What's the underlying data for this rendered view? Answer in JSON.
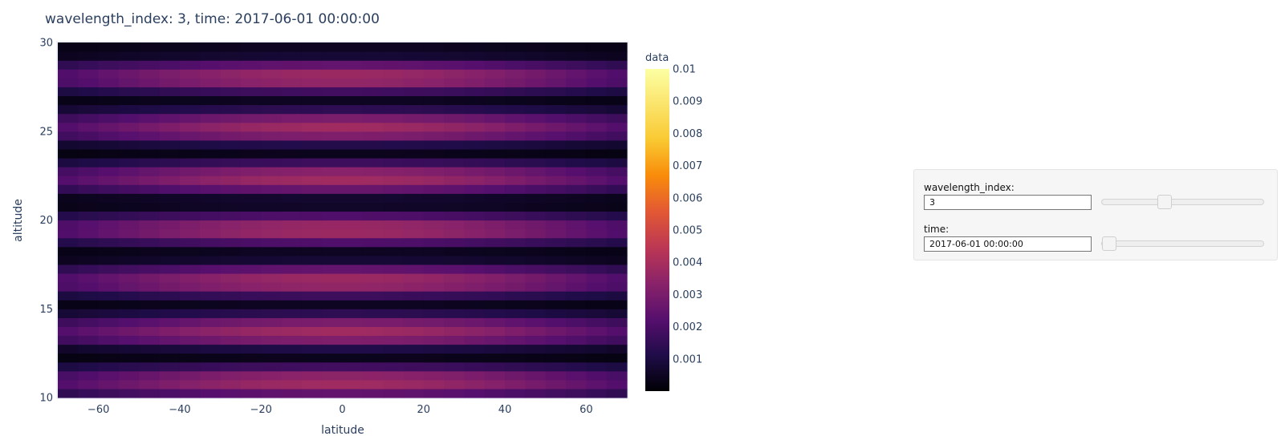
{
  "chart_data": {
    "type": "heatmap",
    "title": "wavelength_index: 3, time: 2017-06-01 00:00:00",
    "xlabel": "latitude",
    "ylabel": "altitude",
    "xlim": [
      -70,
      70
    ],
    "ylim": [
      10,
      30
    ],
    "x_ticks": [
      -60,
      -40,
      -20,
      0,
      20,
      40,
      60
    ],
    "y_ticks": [
      10,
      15,
      20,
      25,
      30
    ],
    "x_tick_labels": [
      "−60",
      "−40",
      "−20",
      "0",
      "20",
      "40",
      "60"
    ],
    "y_tick_labels": [
      "10",
      "15",
      "20",
      "25",
      "30"
    ],
    "x": [
      -67.5,
      -62.5,
      -57.5,
      -52.5,
      -47.5,
      -42.5,
      -37.5,
      -32.5,
      -27.5,
      -22.5,
      -17.5,
      -12.5,
      -7.5,
      -2.5,
      2.5,
      7.5,
      12.5,
      17.5,
      22.5,
      27.5,
      32.5,
      37.5,
      42.5,
      47.5,
      52.5,
      57.5,
      62.5,
      67.5
    ],
    "y": [
      10.25,
      10.75,
      11.25,
      11.75,
      12.25,
      12.75,
      13.25,
      13.75,
      14.25,
      14.75,
      15.25,
      15.75,
      16.25,
      16.75,
      17.25,
      17.75,
      18.25,
      18.75,
      19.25,
      19.75,
      20.25,
      20.75,
      21.25,
      21.75,
      22.25,
      22.75,
      23.25,
      23.75,
      24.25,
      24.75,
      25.25,
      25.75,
      26.25,
      26.75,
      27.25,
      27.75,
      28.25,
      28.75,
      29.25,
      29.75
    ],
    "row_peak_values": [
      0.0025,
      0.0038,
      0.0034,
      0.0018,
      0.0004,
      0.0011,
      0.0031,
      0.0038,
      0.003,
      0.0014,
      0.0005,
      0.0017,
      0.0035,
      0.0037,
      0.0025,
      0.0008,
      0.0005,
      0.0021,
      0.0037,
      0.0036,
      0.0021,
      0.0006,
      0.0007,
      0.0026,
      0.0038,
      0.0033,
      0.0017,
      0.0004,
      0.0012,
      0.0031,
      0.0038,
      0.003,
      0.0014,
      0.0005,
      0.0018,
      0.0035,
      0.0037,
      0.0025,
      0.0008,
      0.0005
    ],
    "colorbar": {
      "title": "data",
      "colorscale": "inferno",
      "range": [
        0,
        0.01
      ],
      "ticks": [
        0.001,
        0.002,
        0.003,
        0.004,
        0.005,
        0.006,
        0.007,
        0.008,
        0.009,
        0.01
      ],
      "tick_labels": [
        "0.001",
        "0.002",
        "0.003",
        "0.004",
        "0.005",
        "0.006",
        "0.007",
        "0.008",
        "0.009",
        "0.01"
      ]
    }
  },
  "widgets": {
    "wavelength": {
      "label": "wavelength_index:",
      "value": "3",
      "slider_fraction": 0.375
    },
    "time": {
      "label": "time:",
      "value": "2017-06-01 00:00:00",
      "slider_fraction": 0.0
    }
  }
}
